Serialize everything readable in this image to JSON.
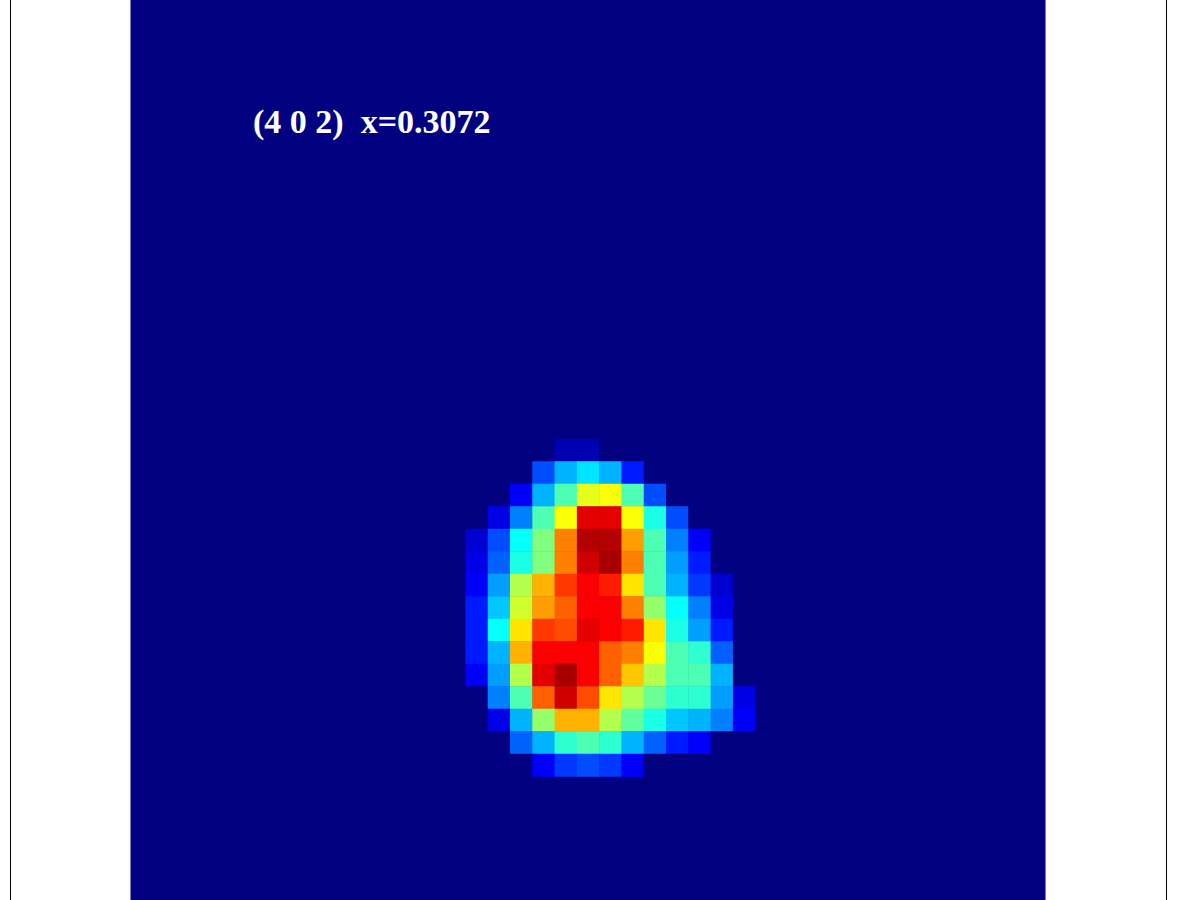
{
  "chart_data": {
    "type": "heatmap",
    "annotation": "(4 0 2)  x=0.3072",
    "tick_labels": false,
    "xlim": [
      0,
      41
    ],
    "ylim": [
      0.5,
      40.5
    ],
    "zlim": [
      0,
      1
    ],
    "x": [
      15.5,
      16.5,
      17.5,
      18.5,
      19.5,
      20.5,
      21.5,
      22.5,
      23.5,
      24.5,
      25.5,
      26.5,
      27.5
    ],
    "y": [
      20.5,
      21.5,
      22.5,
      23.5,
      24.5,
      25.5,
      26.5,
      27.5,
      28.5,
      29.5,
      30.5,
      31.5,
      32.5,
      33.5,
      34.5
    ],
    "z": [
      [
        0,
        0,
        0,
        0,
        0.05,
        0.05,
        0,
        0,
        0,
        0,
        0,
        0,
        0
      ],
      [
        0,
        0,
        0,
        0.2,
        0.3,
        0.35,
        0.3,
        0.15,
        0,
        0,
        0,
        0,
        0
      ],
      [
        0,
        0,
        0.12,
        0.3,
        0.45,
        0.6,
        0.62,
        0.45,
        0.2,
        0,
        0,
        0,
        0
      ],
      [
        0,
        0.1,
        0.25,
        0.45,
        0.62,
        0.9,
        0.9,
        0.62,
        0.4,
        0.2,
        0,
        0,
        0
      ],
      [
        0.08,
        0.2,
        0.38,
        0.5,
        0.75,
        0.95,
        0.95,
        0.72,
        0.45,
        0.25,
        0.12,
        0,
        0
      ],
      [
        0.1,
        0.22,
        0.4,
        0.5,
        0.75,
        0.92,
        0.96,
        0.75,
        0.45,
        0.28,
        0.15,
        0,
        0
      ],
      [
        0.12,
        0.28,
        0.55,
        0.7,
        0.82,
        0.88,
        0.85,
        0.65,
        0.45,
        0.3,
        0.18,
        0.08,
        0
      ],
      [
        0.15,
        0.32,
        0.58,
        0.72,
        0.78,
        0.88,
        0.88,
        0.75,
        0.52,
        0.38,
        0.25,
        0.1,
        0
      ],
      [
        0.15,
        0.38,
        0.65,
        0.82,
        0.8,
        0.9,
        0.88,
        0.85,
        0.65,
        0.4,
        0.28,
        0.15,
        0
      ],
      [
        0.15,
        0.3,
        0.7,
        0.88,
        0.88,
        0.88,
        0.78,
        0.75,
        0.62,
        0.45,
        0.42,
        0.22,
        0
      ],
      [
        0.12,
        0.28,
        0.55,
        0.9,
        0.96,
        0.88,
        0.78,
        0.68,
        0.55,
        0.45,
        0.45,
        0.3,
        0
      ],
      [
        0,
        0.25,
        0.45,
        0.78,
        0.92,
        0.8,
        0.65,
        0.55,
        0.48,
        0.42,
        0.42,
        0.28,
        0.1
      ],
      [
        0,
        0.1,
        0.3,
        0.52,
        0.7,
        0.7,
        0.55,
        0.47,
        0.4,
        0.32,
        0.3,
        0.25,
        0.12
      ],
      [
        0,
        0,
        0.22,
        0.3,
        0.42,
        0.45,
        0.42,
        0.3,
        0.22,
        0.15,
        0.12,
        0,
        0
      ],
      [
        0,
        0,
        0,
        0.12,
        0.18,
        0.2,
        0.18,
        0.12,
        0,
        0,
        0,
        0,
        0
      ]
    ]
  }
}
